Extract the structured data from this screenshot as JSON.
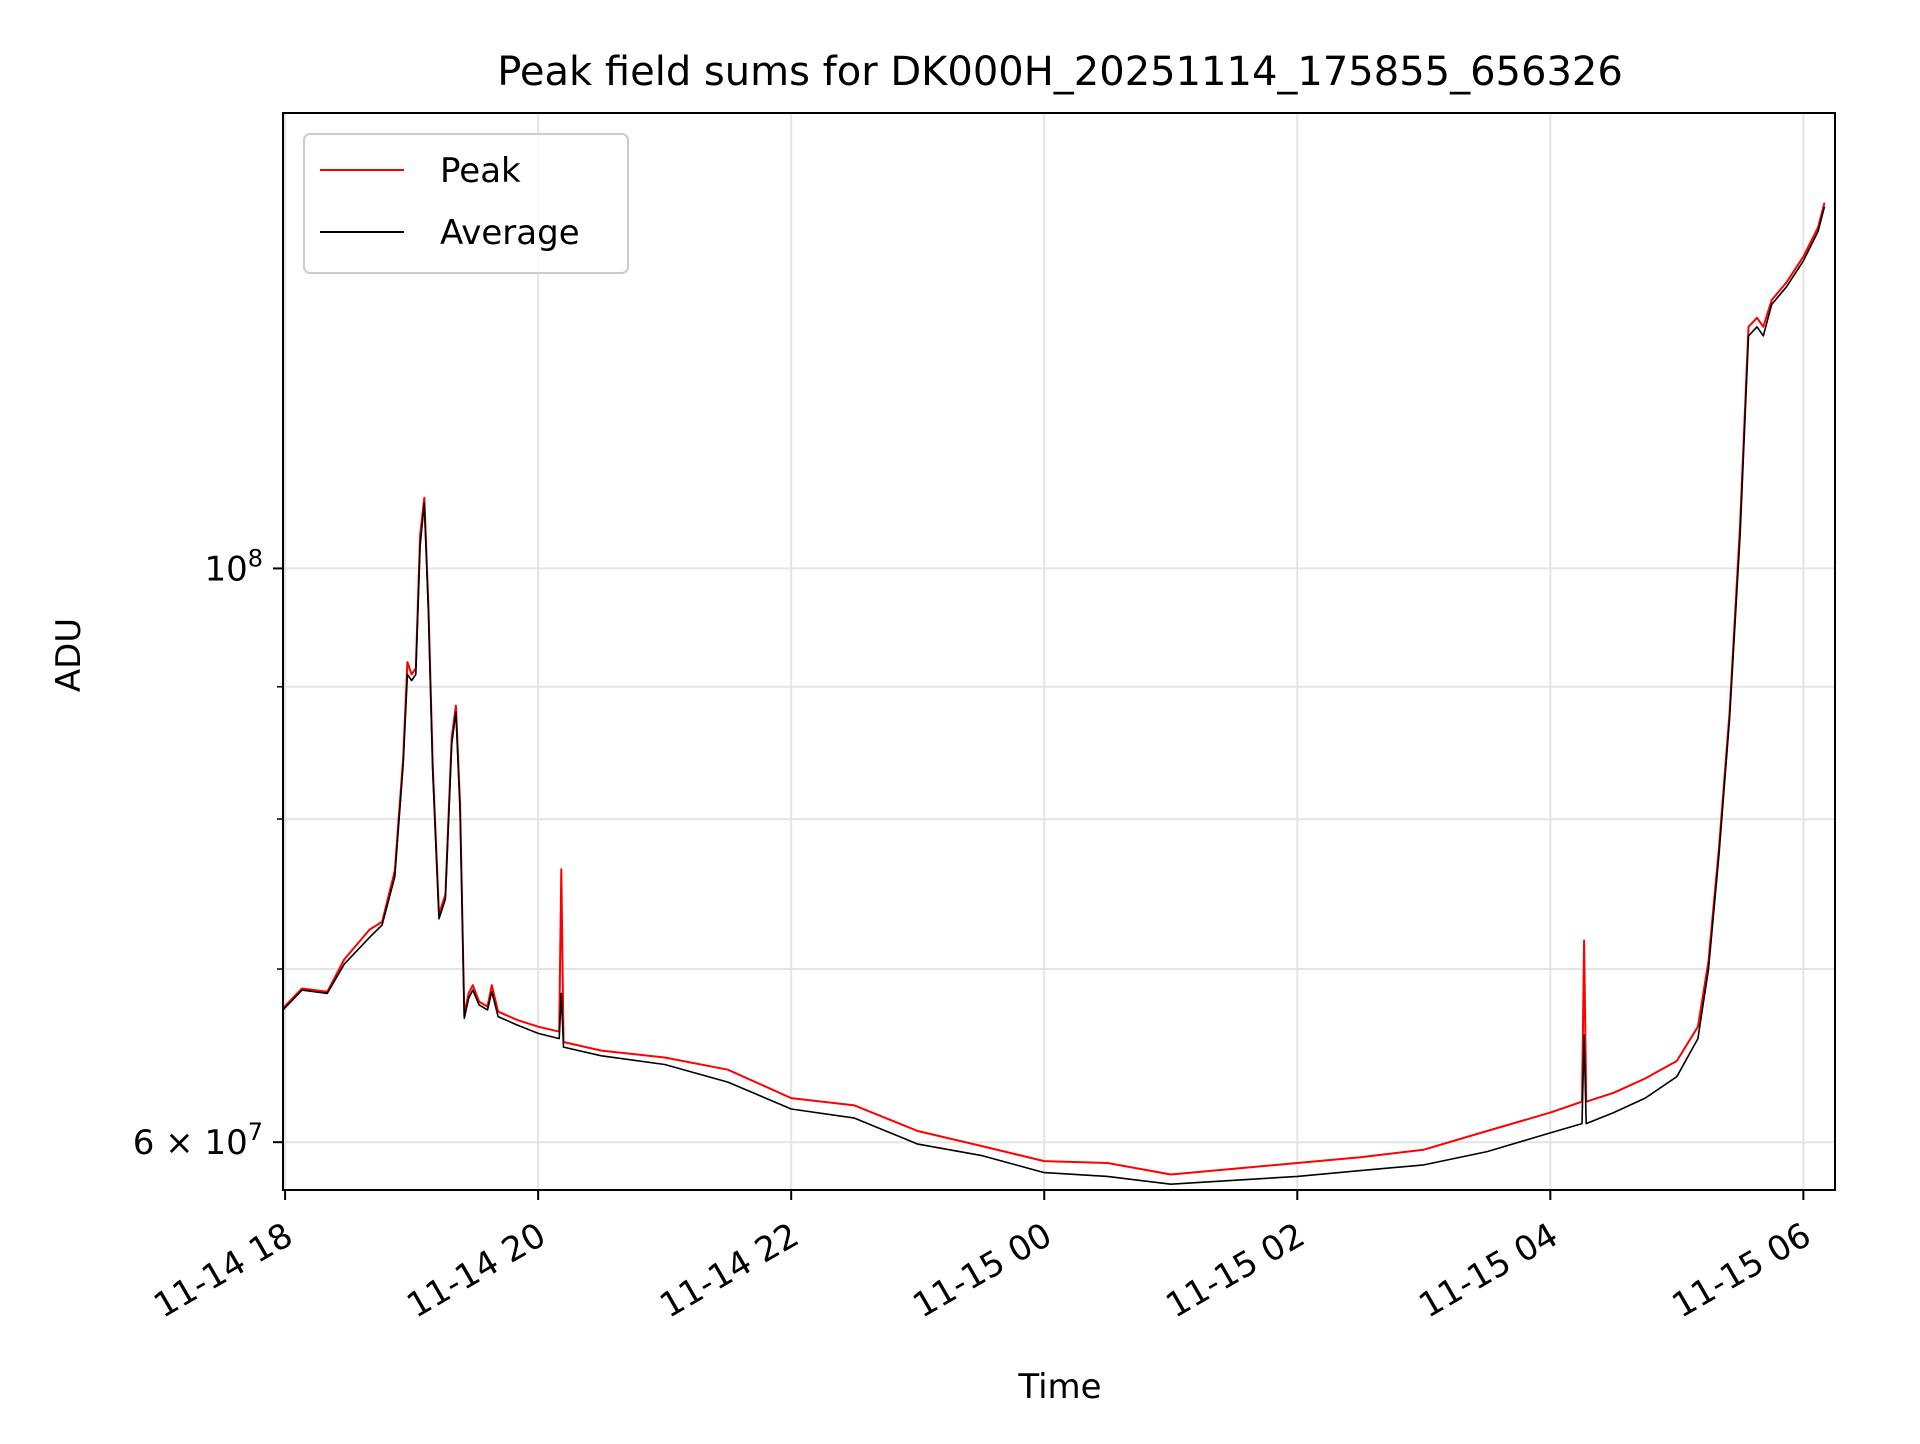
{
  "chart_data": {
    "type": "line",
    "title": "Peak field sums for DK000H_20251114_175855_656326",
    "xlabel": "Time",
    "ylabel": "ADU",
    "y_scale": "log",
    "grid": true,
    "legend_position": "top-left",
    "xlim": [
      "2025-11-14T17:59",
      "2025-11-15T06:15"
    ],
    "ylim": [
      57500000,
      150000000
    ],
    "x_ticks": [
      {
        "t": "2025-11-14T18:00",
        "label": "11-14 18"
      },
      {
        "t": "2025-11-14T20:00",
        "label": "11-14 20"
      },
      {
        "t": "2025-11-14T22:00",
        "label": "11-14 22"
      },
      {
        "t": "2025-11-15T00:00",
        "label": "11-15 00"
      },
      {
        "t": "2025-11-15T02:00",
        "label": "11-15 02"
      },
      {
        "t": "2025-11-15T04:00",
        "label": "11-15 04"
      },
      {
        "t": "2025-11-15T06:00",
        "label": "11-15 06"
      }
    ],
    "y_major_ticks": [
      {
        "v": 60000000,
        "base": "6 × 10",
        "exp": "7"
      },
      {
        "v": 100000000,
        "base": "10",
        "exp": "8"
      }
    ],
    "y_minor_ticks": [
      70000000,
      80000000,
      90000000
    ],
    "series": [
      {
        "name": "Peak",
        "color": "#ff0000",
        "points": [
          [
            "2025-11-14T17:59",
            67600000.0
          ],
          [
            "2025-11-14T18:08",
            68800000.0
          ],
          [
            "2025-11-14T18:20",
            68600000.0
          ],
          [
            "2025-11-14T18:28",
            70600000.0
          ],
          [
            "2025-11-14T18:40",
            72500000.0
          ],
          [
            "2025-11-14T18:46",
            73000000.0
          ],
          [
            "2025-11-14T18:52",
            76400000.0
          ],
          [
            "2025-11-14T18:56",
            84500000.0
          ],
          [
            "2025-11-14T18:58",
            92000000.0
          ],
          [
            "2025-11-14T19:00",
            91000000.0
          ],
          [
            "2025-11-14T19:02",
            91500000.0
          ],
          [
            "2025-11-14T19:04",
            103000000.0
          ],
          [
            "2025-11-14T19:06",
            106500000.0
          ],
          [
            "2025-11-14T19:08",
            96500000.0
          ],
          [
            "2025-11-14T19:10",
            84000000.0
          ],
          [
            "2025-11-14T19:13",
            73500000.0
          ],
          [
            "2025-11-14T19:16",
            74800000.0
          ],
          [
            "2025-11-14T19:19",
            86000000.0
          ],
          [
            "2025-11-14T19:21",
            88500000.0
          ],
          [
            "2025-11-14T19:23",
            81000000.0
          ],
          [
            "2025-11-14T19:25",
            67200000.0
          ],
          [
            "2025-11-14T19:27",
            68500000.0
          ],
          [
            "2025-11-14T19:29",
            69000000.0
          ],
          [
            "2025-11-14T19:32",
            68000000.0
          ],
          [
            "2025-11-14T19:36",
            67700000.0
          ],
          [
            "2025-11-14T19:38",
            69000000.0
          ],
          [
            "2025-11-14T19:41",
            67400000.0
          ],
          [
            "2025-11-14T19:50",
            66900000.0
          ],
          [
            "2025-11-14T20:00",
            66500000.0
          ],
          [
            "2025-11-14T20:10",
            66200000.0
          ],
          [
            "2025-11-14T20:11",
            76500000.0
          ],
          [
            "2025-11-14T20:12",
            65600000.0
          ],
          [
            "2025-11-14T20:30",
            65100000.0
          ],
          [
            "2025-11-14T21:00",
            64700000.0
          ],
          [
            "2025-11-14T21:30",
            64000000.0
          ],
          [
            "2025-11-14T22:00",
            62400000.0
          ],
          [
            "2025-11-14T22:30",
            62000000.0
          ],
          [
            "2025-11-14T23:00",
            60600000.0
          ],
          [
            "2025-11-14T23:30",
            59800000.0
          ],
          [
            "2025-11-15T00:00",
            59000000.0
          ],
          [
            "2025-11-15T00:30",
            58900000.0
          ],
          [
            "2025-11-15T01:00",
            58300000.0
          ],
          [
            "2025-11-15T01:30",
            58600000.0
          ],
          [
            "2025-11-15T02:00",
            58900000.0
          ],
          [
            "2025-11-15T02:30",
            59200000.0
          ],
          [
            "2025-11-15T03:00",
            59600000.0
          ],
          [
            "2025-11-15T03:30",
            60600000.0
          ],
          [
            "2025-11-15T04:00",
            61600000.0
          ],
          [
            "2025-11-15T04:15",
            62200000.0
          ],
          [
            "2025-11-15T04:16",
            71800000.0
          ],
          [
            "2025-11-15T04:17",
            62200000.0
          ],
          [
            "2025-11-15T04:30",
            62700000.0
          ],
          [
            "2025-11-15T04:45",
            63500000.0
          ],
          [
            "2025-11-15T05:00",
            64500000.0
          ],
          [
            "2025-11-15T05:10",
            66500000.0
          ],
          [
            "2025-11-15T05:15",
            70500000.0
          ],
          [
            "2025-11-15T05:20",
            78000000.0
          ],
          [
            "2025-11-15T05:25",
            88000000.0
          ],
          [
            "2025-11-15T05:30",
            104000000.0
          ],
          [
            "2025-11-15T05:34",
            124000000.0
          ],
          [
            "2025-11-15T05:38",
            125000000.0
          ],
          [
            "2025-11-15T05:41",
            124000000.0
          ],
          [
            "2025-11-15T05:45",
            127000000.0
          ],
          [
            "2025-11-15T05:52",
            129000000.0
          ],
          [
            "2025-11-15T06:00",
            132000000.0
          ],
          [
            "2025-11-15T06:07",
            135500000.0
          ],
          [
            "2025-11-15T06:10",
            138500000.0
          ]
        ]
      },
      {
        "name": "Average",
        "color": "#000000",
        "points": [
          [
            "2025-11-14T17:59",
            67500000.0
          ],
          [
            "2025-11-14T18:08",
            68700000.0
          ],
          [
            "2025-11-14T18:20",
            68500000.0
          ],
          [
            "2025-11-14T18:28",
            70300000.0
          ],
          [
            "2025-11-14T18:40",
            72000000.0
          ],
          [
            "2025-11-14T18:46",
            72800000.0
          ],
          [
            "2025-11-14T18:52",
            76000000.0
          ],
          [
            "2025-11-14T18:56",
            84000000.0
          ],
          [
            "2025-11-14T18:58",
            91000000.0
          ],
          [
            "2025-11-14T19:00",
            90500000.0
          ],
          [
            "2025-11-14T19:02",
            91000000.0
          ],
          [
            "2025-11-14T19:04",
            102000000.0
          ],
          [
            "2025-11-14T19:06",
            106000000.0
          ],
          [
            "2025-11-14T19:08",
            96000000.0
          ],
          [
            "2025-11-14T19:10",
            83500000.0
          ],
          [
            "2025-11-14T19:13",
            73200000.0
          ],
          [
            "2025-11-14T19:16",
            74500000.0
          ],
          [
            "2025-11-14T19:19",
            85500000.0
          ],
          [
            "2025-11-14T19:21",
            88000000.0
          ],
          [
            "2025-11-14T19:23",
            80500000.0
          ],
          [
            "2025-11-14T19:25",
            67000000.0
          ],
          [
            "2025-11-14T19:27",
            68200000.0
          ],
          [
            "2025-11-14T19:29",
            68700000.0
          ],
          [
            "2025-11-14T19:32",
            67800000.0
          ],
          [
            "2025-11-14T19:36",
            67500000.0
          ],
          [
            "2025-11-14T19:38",
            68600000.0
          ],
          [
            "2025-11-14T19:41",
            67100000.0
          ],
          [
            "2025-11-14T19:50",
            66600000.0
          ],
          [
            "2025-11-14T20:00",
            66100000.0
          ],
          [
            "2025-11-14T20:10",
            65800000.0
          ],
          [
            "2025-11-14T20:11",
            68500000.0
          ],
          [
            "2025-11-14T20:12",
            65300000.0
          ],
          [
            "2025-11-14T20:30",
            64800000.0
          ],
          [
            "2025-11-14T21:00",
            64300000.0
          ],
          [
            "2025-11-14T21:30",
            63300000.0
          ],
          [
            "2025-11-14T22:00",
            61800000.0
          ],
          [
            "2025-11-14T22:30",
            61300000.0
          ],
          [
            "2025-11-14T23:00",
            59900000.0
          ],
          [
            "2025-11-14T23:30",
            59300000.0
          ],
          [
            "2025-11-15T00:00",
            58400000.0
          ],
          [
            "2025-11-15T00:30",
            58200000.0
          ],
          [
            "2025-11-15T01:00",
            57800000.0
          ],
          [
            "2025-11-15T01:30",
            58000000.0
          ],
          [
            "2025-11-15T02:00",
            58200000.0
          ],
          [
            "2025-11-15T02:30",
            58500000.0
          ],
          [
            "2025-11-15T03:00",
            58800000.0
          ],
          [
            "2025-11-15T03:30",
            59500000.0
          ],
          [
            "2025-11-15T04:00",
            60500000.0
          ],
          [
            "2025-11-15T04:15",
            61000000.0
          ],
          [
            "2025-11-15T04:16",
            66000000.0
          ],
          [
            "2025-11-15T04:17",
            61000000.0
          ],
          [
            "2025-11-15T04:30",
            61600000.0
          ],
          [
            "2025-11-15T04:45",
            62400000.0
          ],
          [
            "2025-11-15T05:00",
            63600000.0
          ],
          [
            "2025-11-15T05:10",
            65800000.0
          ],
          [
            "2025-11-15T05:15",
            70000000.0
          ],
          [
            "2025-11-15T05:20",
            77500000.0
          ],
          [
            "2025-11-15T05:25",
            87500000.0
          ],
          [
            "2025-11-15T05:30",
            103000000.0
          ],
          [
            "2025-11-15T05:34",
            123000000.0
          ],
          [
            "2025-11-15T05:38",
            124000000.0
          ],
          [
            "2025-11-15T05:41",
            123000000.0
          ],
          [
            "2025-11-15T05:45",
            126500000.0
          ],
          [
            "2025-11-15T05:52",
            128500000.0
          ],
          [
            "2025-11-15T06:00",
            131500000.0
          ],
          [
            "2025-11-15T06:07",
            135000000.0
          ],
          [
            "2025-11-15T06:10",
            138000000.0
          ]
        ]
      }
    ]
  }
}
